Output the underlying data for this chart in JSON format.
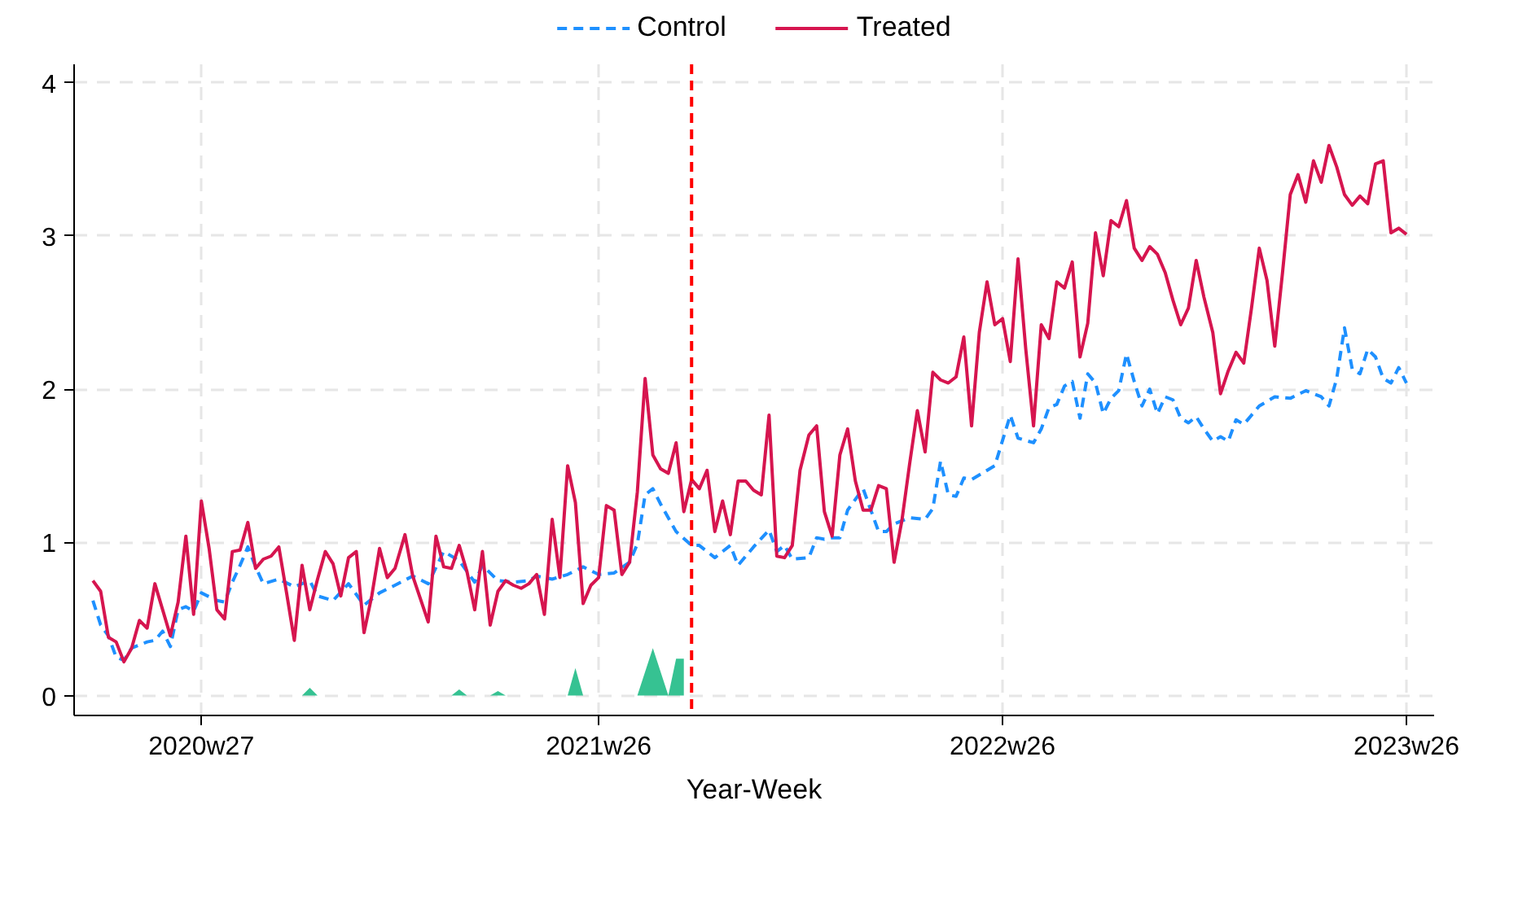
{
  "chart_data": {
    "type": "line",
    "xlabel": "Year-Week",
    "x": [
      "2020-03-25",
      "2020-04-01",
      "2020-04-08",
      "2020-04-15",
      "2020-04-22",
      "2020-04-29",
      "2020-05-06",
      "2020-05-13",
      "2020-05-20",
      "2020-05-27",
      "2020-06-03",
      "2020-06-10",
      "2020-06-17",
      "2020-06-24",
      "2020-07-01",
      "2020-07-08",
      "2020-07-15",
      "2020-07-22",
      "2020-07-29",
      "2020-08-05",
      "2020-08-12",
      "2020-08-19",
      "2020-08-26",
      "2020-09-02",
      "2020-09-09",
      "2020-09-16",
      "2020-09-23",
      "2020-09-30",
      "2020-10-07",
      "2020-10-14",
      "2020-10-21",
      "2020-10-28",
      "2020-11-04",
      "2020-11-11",
      "2020-11-18",
      "2020-11-25",
      "2020-12-02",
      "2020-12-09",
      "2020-12-16",
      "2020-12-23",
      "2021-01-01",
      "2021-01-08",
      "2021-01-15",
      "2021-01-22",
      "2021-01-29",
      "2021-02-05",
      "2021-02-12",
      "2021-02-19",
      "2021-02-26",
      "2021-03-05",
      "2021-03-12",
      "2021-03-19",
      "2021-03-26",
      "2021-04-02",
      "2021-04-09",
      "2021-04-16",
      "2021-04-23",
      "2021-04-30",
      "2021-05-07",
      "2021-05-14",
      "2021-05-21",
      "2021-05-28",
      "2021-06-04",
      "2021-06-11",
      "2021-06-18",
      "2021-06-25",
      "2021-07-02",
      "2021-07-09",
      "2021-07-16",
      "2021-07-23",
      "2021-07-30",
      "2021-08-06",
      "2021-08-13",
      "2021-08-20",
      "2021-08-27",
      "2021-09-03",
      "2021-09-10",
      "2021-09-17",
      "2021-09-24",
      "2021-10-01",
      "2021-10-08",
      "2021-10-15",
      "2021-10-22",
      "2021-10-29",
      "2021-11-05",
      "2021-11-12",
      "2021-11-19",
      "2021-11-26",
      "2021-12-03",
      "2021-12-10",
      "2021-12-17",
      "2021-12-24",
      "2022-01-01",
      "2022-01-08",
      "2022-01-15",
      "2022-01-22",
      "2022-01-29",
      "2022-02-05",
      "2022-02-12",
      "2022-02-19",
      "2022-02-26",
      "2022-03-05",
      "2022-03-12",
      "2022-03-19",
      "2022-03-26",
      "2022-04-02",
      "2022-04-09",
      "2022-04-16",
      "2022-04-23",
      "2022-04-30",
      "2022-05-07",
      "2022-05-14",
      "2022-05-21",
      "2022-05-28",
      "2022-06-04",
      "2022-06-11",
      "2022-06-18",
      "2022-06-25",
      "2022-07-02",
      "2022-07-09",
      "2022-07-16",
      "2022-07-23",
      "2022-07-30",
      "2022-08-06",
      "2022-08-13",
      "2022-08-20",
      "2022-08-27",
      "2022-09-03",
      "2022-09-10",
      "2022-09-17",
      "2022-09-24",
      "2022-10-01",
      "2022-10-08",
      "2022-10-15",
      "2022-10-22",
      "2022-10-29",
      "2022-11-05",
      "2022-11-12",
      "2022-11-19",
      "2022-11-26",
      "2022-12-03",
      "2022-12-10",
      "2022-12-17",
      "2022-12-24",
      "2023-01-01",
      "2023-01-08",
      "2023-01-15",
      "2023-01-22",
      "2023-01-29",
      "2023-02-05",
      "2023-02-12",
      "2023-02-19",
      "2023-02-26",
      "2023-03-05",
      "2023-03-12",
      "2023-03-19",
      "2023-03-26",
      "2023-04-02",
      "2023-04-09",
      "2023-04-16",
      "2023-04-23",
      "2023-04-30",
      "2023-05-07",
      "2023-05-14",
      "2023-05-21",
      "2023-05-28",
      "2023-06-04",
      "2023-06-11",
      "2023-06-18",
      "2023-06-25"
    ],
    "series": [
      {
        "name": "Control",
        "color": "#1e90ff",
        "line_style": "dashed",
        "x": [
          "2020-03-25",
          "2020-04-01",
          "2020-04-08",
          "2020-04-15",
          "2020-04-22",
          "2020-04-29",
          "2020-05-13",
          "2020-05-20",
          "2020-05-27",
          "2020-06-03",
          "2020-06-10",
          "2020-06-17",
          "2020-06-24",
          "2020-07-01",
          "2020-07-15",
          "2020-07-22",
          "2020-07-29",
          "2020-08-05",
          "2020-08-12",
          "2020-08-19",
          "2020-08-26",
          "2020-09-09",
          "2020-09-23",
          "2020-10-07",
          "2020-10-14",
          "2020-10-28",
          "2020-11-11",
          "2020-11-25",
          "2020-12-09",
          "2020-12-23",
          "2021-01-08",
          "2021-01-22",
          "2021-02-05",
          "2021-02-19",
          "2021-03-05",
          "2021-03-12",
          "2021-03-26",
          "2021-04-09",
          "2021-04-23",
          "2021-04-30",
          "2021-05-14",
          "2021-05-28",
          "2021-06-11",
          "2021-06-25",
          "2021-07-09",
          "2021-07-23",
          "2021-07-30",
          "2021-08-06",
          "2021-08-13",
          "2021-08-20",
          "2021-09-03",
          "2021-09-17",
          "2021-09-24",
          "2021-10-08",
          "2021-10-22",
          "2021-10-29",
          "2021-11-12",
          "2021-11-26",
          "2021-12-03",
          "2021-12-10",
          "2021-12-17",
          "2022-01-01",
          "2022-01-08",
          "2022-01-15",
          "2022-01-22",
          "2022-01-29",
          "2022-02-05",
          "2022-02-19",
          "2022-03-05",
          "2022-03-12",
          "2022-03-19",
          "2022-04-02",
          "2022-04-16",
          "2022-04-23",
          "2022-04-30",
          "2022-05-07",
          "2022-05-14",
          "2022-05-21",
          "2022-05-28",
          "2022-06-04",
          "2022-06-18",
          "2022-07-02",
          "2022-07-09",
          "2022-07-23",
          "2022-07-30",
          "2022-08-06",
          "2022-08-13",
          "2022-08-20",
          "2022-08-27",
          "2022-09-03",
          "2022-09-10",
          "2022-09-17",
          "2022-09-24",
          "2022-10-01",
          "2022-10-08",
          "2022-10-15",
          "2022-10-22",
          "2022-10-29",
          "2022-11-05",
          "2022-11-12",
          "2022-11-19",
          "2022-11-26",
          "2022-12-03",
          "2022-12-10",
          "2022-12-17",
          "2022-12-24",
          "2023-01-01",
          "2023-01-08",
          "2023-01-15",
          "2023-01-22",
          "2023-01-29",
          "2023-02-12",
          "2023-02-26",
          "2023-03-12",
          "2023-03-26",
          "2023-04-09",
          "2023-04-16",
          "2023-04-23",
          "2023-04-30",
          "2023-05-07",
          "2023-05-14",
          "2023-05-21",
          "2023-05-28",
          "2023-06-04",
          "2023-06-11",
          "2023-06-18",
          "2023-06-25"
        ],
        "values": [
          0.62,
          0.46,
          0.39,
          0.25,
          0.23,
          0.31,
          0.35,
          0.36,
          0.42,
          0.32,
          0.56,
          0.58,
          0.55,
          0.67,
          0.62,
          0.61,
          0.74,
          0.85,
          0.97,
          0.84,
          0.73,
          0.76,
          0.71,
          0.75,
          0.65,
          0.62,
          0.73,
          0.59,
          0.67,
          0.72,
          0.78,
          0.73,
          0.94,
          0.88,
          0.74,
          0.85,
          0.75,
          0.74,
          0.75,
          0.78,
          0.76,
          0.79,
          0.84,
          0.79,
          0.8,
          0.87,
          0.99,
          1.31,
          1.35,
          1.25,
          1.07,
          0.98,
          0.98,
          0.9,
          0.98,
          0.85,
          0.97,
          1.08,
          0.94,
          0.98,
          0.89,
          0.9,
          1.03,
          1.02,
          1.03,
          1.03,
          1.21,
          1.35,
          1.07,
          1.07,
          1.12,
          1.16,
          1.15,
          1.22,
          1.53,
          1.31,
          1.3,
          1.42,
          1.41,
          1.44,
          1.5,
          1.83,
          1.68,
          1.65,
          1.74,
          1.88,
          1.9,
          2.02,
          2.05,
          1.81,
          2.1,
          2.04,
          1.84,
          1.94,
          1.99,
          2.23,
          2.05,
          1.89,
          2.0,
          1.84,
          1.95,
          1.93,
          1.81,
          1.78,
          1.82,
          1.74,
          1.66,
          1.69,
          1.66,
          1.8,
          1.77,
          1.89,
          1.95,
          1.94,
          1.99,
          1.95,
          1.89,
          2.07,
          2.4,
          2.13,
          2.1,
          2.26,
          2.21,
          2.07,
          2.04,
          2.14,
          2.04
        ]
      },
      {
        "name": "Treated",
        "color": "#d6154f",
        "line_style": "solid",
        "values": [
          0.75,
          0.68,
          0.38,
          0.35,
          0.22,
          0.31,
          0.49,
          0.44,
          0.73,
          0.56,
          0.39,
          0.61,
          1.04,
          0.53,
          1.27,
          0.96,
          0.56,
          0.5,
          0.94,
          0.95,
          1.13,
          0.83,
          0.89,
          0.91,
          0.97,
          0.67,
          0.36,
          0.85,
          0.56,
          0.76,
          0.94,
          0.86,
          0.65,
          0.9,
          0.94,
          0.41,
          0.65,
          0.96,
          0.77,
          0.83,
          1.05,
          0.78,
          0.63,
          0.48,
          1.04,
          0.84,
          0.83,
          0.98,
          0.81,
          0.56,
          0.94,
          0.46,
          0.68,
          0.75,
          0.72,
          0.7,
          0.73,
          0.79,
          0.53,
          1.15,
          0.77,
          1.5,
          1.26,
          0.6,
          0.72,
          0.77,
          1.24,
          1.21,
          0.79,
          0.87,
          1.33,
          2.07,
          1.57,
          1.48,
          1.45,
          1.65,
          1.2,
          1.41,
          1.35,
          1.47,
          1.07,
          1.27,
          1.05,
          1.4,
          1.4,
          1.34,
          1.31,
          1.83,
          0.91,
          0.9,
          0.98,
          1.47,
          1.7,
          1.76,
          1.2,
          1.04,
          1.57,
          1.74,
          1.4,
          1.21,
          1.21,
          1.37,
          1.35,
          0.87,
          1.14,
          1.51,
          1.86,
          1.59,
          2.11,
          2.06,
          2.04,
          2.08,
          2.34,
          1.76,
          2.37,
          2.7,
          2.42,
          2.46,
          2.18,
          2.85,
          2.26,
          1.76,
          2.42,
          2.33,
          2.7,
          2.66,
          2.83,
          2.21,
          2.43,
          3.02,
          2.74,
          3.1,
          3.06,
          3.23,
          2.92,
          2.84,
          2.93,
          2.88,
          2.76,
          2.58,
          2.42,
          2.53,
          2.84,
          2.6,
          2.37,
          1.97,
          2.12,
          2.24,
          2.17,
          2.53,
          2.92,
          2.71,
          2.28,
          2.76,
          3.27,
          3.4,
          3.22,
          3.49,
          3.35,
          3.59,
          3.45,
          3.27,
          3.2,
          3.26,
          3.21,
          3.47,
          3.49,
          3.02,
          3.05,
          3.01
        ]
      },
      {
        "type": "area",
        "color": "#2bbf8c",
        "x": [
          "2020-09-30",
          "2020-10-07",
          "2020-10-14",
          "2021-02-12",
          "2021-02-19",
          "2021-02-26",
          "2021-03-19",
          "2021-03-26",
          "2021-04-02",
          "2021-05-28",
          "2021-06-04",
          "2021-06-11",
          "2021-07-30",
          "2021-08-13",
          "2021-08-27",
          "2021-09-03",
          "2021-09-10"
        ],
        "values": [
          0,
          0.05,
          0,
          0,
          0.04,
          0,
          0,
          0.03,
          0,
          0,
          0.18,
          0,
          0,
          0.31,
          0,
          0.24,
          0.24
        ]
      }
    ],
    "xlim": [
      "2020-03-08",
      "2023-07-20"
    ],
    "xticks": [
      {
        "value": "2020-07-01",
        "label": "2020w27"
      },
      {
        "value": "2021-06-25",
        "label": "2021w26"
      },
      {
        "value": "2022-06-25",
        "label": "2022w26"
      },
      {
        "value": "2023-06-25",
        "label": "2023w26"
      }
    ],
    "ylim": [
      -0.13,
      4.12
    ],
    "yticks": [
      0,
      1,
      2,
      3,
      4
    ],
    "ref_lines": [
      {
        "axis": "x",
        "value": "2021-09-17",
        "color": "#ff0000",
        "line_style": "dashed"
      }
    ],
    "grid": true,
    "legend": "top"
  }
}
